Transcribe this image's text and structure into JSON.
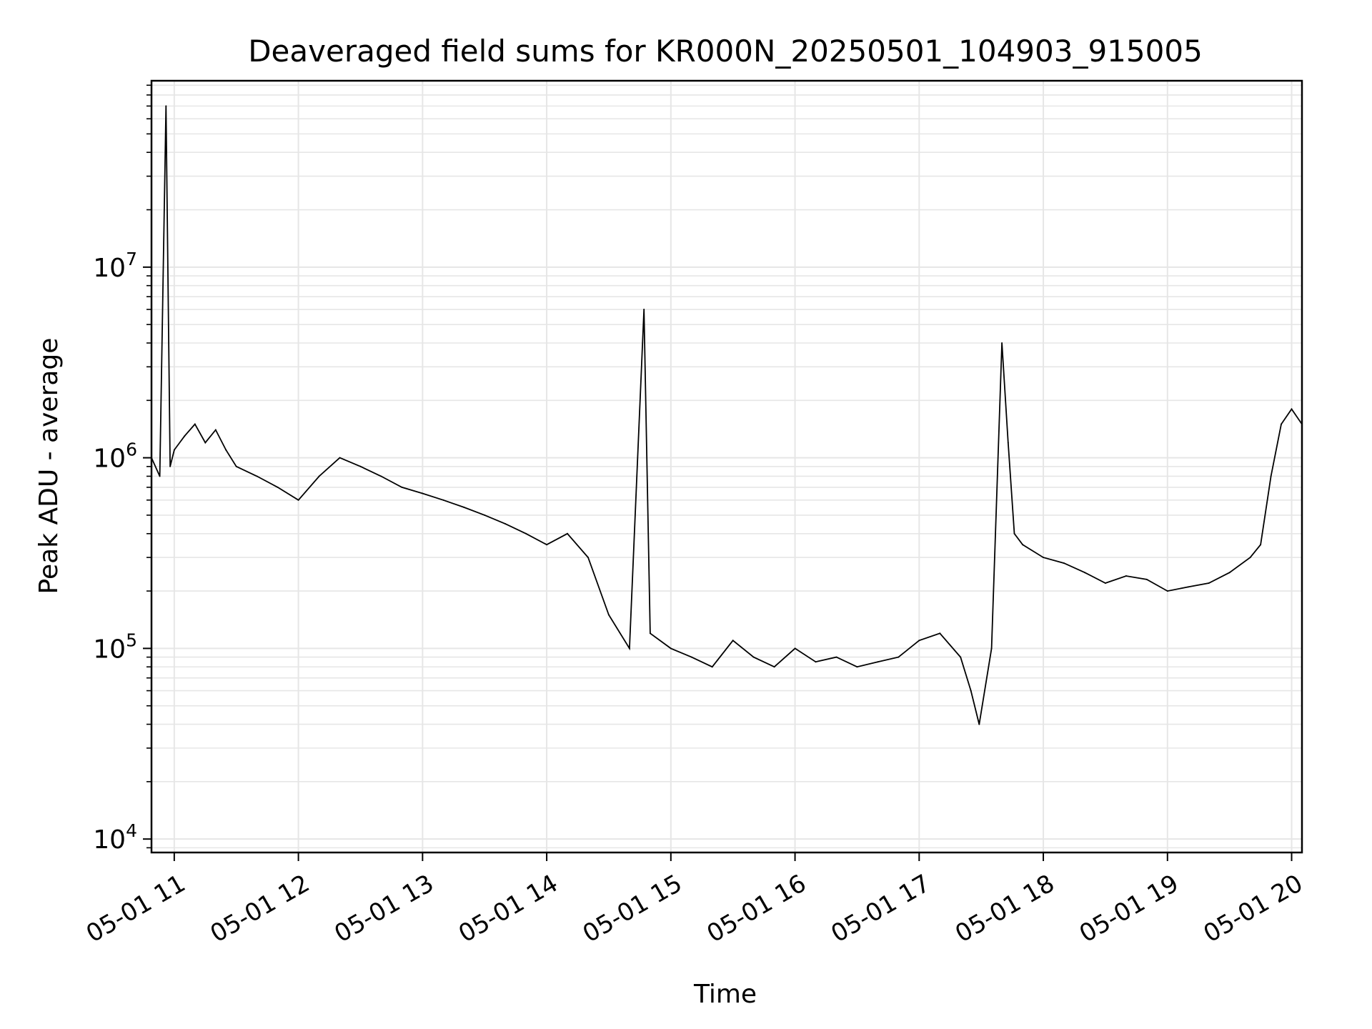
{
  "chart_data": {
    "type": "line",
    "title": "Deaveraged field sums for KR000N_20250501_104903_915005",
    "xlabel": "Time",
    "ylabel": "Peak ADU - average",
    "yscale": "log",
    "ylim": [
      8500,
      95000000
    ],
    "xlim": [
      "2025-05-01T10:49:00",
      "2025-05-01T20:05:00"
    ],
    "x_ticks": [
      {
        "t": "2025-05-01T11:00:00",
        "label": "05-01 11"
      },
      {
        "t": "2025-05-01T12:00:00",
        "label": "05-01 12"
      },
      {
        "t": "2025-05-01T13:00:00",
        "label": "05-01 13"
      },
      {
        "t": "2025-05-01T14:00:00",
        "label": "05-01 14"
      },
      {
        "t": "2025-05-01T15:00:00",
        "label": "05-01 15"
      },
      {
        "t": "2025-05-01T16:00:00",
        "label": "05-01 16"
      },
      {
        "t": "2025-05-01T17:00:00",
        "label": "05-01 17"
      },
      {
        "t": "2025-05-01T18:00:00",
        "label": "05-01 18"
      },
      {
        "t": "2025-05-01T19:00:00",
        "label": "05-01 19"
      },
      {
        "t": "2025-05-01T20:00:00",
        "label": "05-01 20"
      }
    ],
    "y_ticks": [
      {
        "value": 10000,
        "base": "10",
        "exp": "4"
      },
      {
        "value": 100000,
        "base": "10",
        "exp": "5"
      },
      {
        "value": 1000000,
        "base": "10",
        "exp": "6"
      },
      {
        "value": 10000000,
        "base": "10",
        "exp": "7"
      }
    ],
    "grid": true,
    "line_color": "#000000",
    "grid_color": "#e6e6e6",
    "series": [
      {
        "x": [
          "2025-05-01T10:49",
          "2025-05-01T10:53",
          "2025-05-01T10:56",
          "2025-05-01T10:58",
          "2025-05-01T11:00",
          "2025-05-01T11:05",
          "2025-05-01T11:10",
          "2025-05-01T11:15",
          "2025-05-01T11:20",
          "2025-05-01T11:25",
          "2025-05-01T11:30",
          "2025-05-01T11:40",
          "2025-05-01T11:50",
          "2025-05-01T12:00",
          "2025-05-01T12:10",
          "2025-05-01T12:20",
          "2025-05-01T12:30",
          "2025-05-01T12:40",
          "2025-05-01T12:50",
          "2025-05-01T13:00",
          "2025-05-01T13:10",
          "2025-05-01T13:20",
          "2025-05-01T13:30",
          "2025-05-01T13:40",
          "2025-05-01T13:50",
          "2025-05-01T14:00",
          "2025-05-01T14:10",
          "2025-05-01T14:20",
          "2025-05-01T14:30",
          "2025-05-01T14:40",
          "2025-05-01T14:47",
          "2025-05-01T14:50",
          "2025-05-01T15:00",
          "2025-05-01T15:10",
          "2025-05-01T15:20",
          "2025-05-01T15:30",
          "2025-05-01T15:40",
          "2025-05-01T15:50",
          "2025-05-01T16:00",
          "2025-05-01T16:10",
          "2025-05-01T16:20",
          "2025-05-01T16:30",
          "2025-05-01T16:40",
          "2025-05-01T16:50",
          "2025-05-01T17:00",
          "2025-05-01T17:10",
          "2025-05-01T17:20",
          "2025-05-01T17:25",
          "2025-05-01T17:29",
          "2025-05-01T17:35",
          "2025-05-01T17:40",
          "2025-05-01T17:43",
          "2025-05-01T17:46",
          "2025-05-01T17:50",
          "2025-05-01T18:00",
          "2025-05-01T18:10",
          "2025-05-01T18:20",
          "2025-05-01T18:30",
          "2025-05-01T18:40",
          "2025-05-01T18:50",
          "2025-05-01T19:00",
          "2025-05-01T19:10",
          "2025-05-01T19:20",
          "2025-05-01T19:30",
          "2025-05-01T19:40",
          "2025-05-01T19:45",
          "2025-05-01T19:50",
          "2025-05-01T19:55",
          "2025-05-01T20:00",
          "2025-05-01T20:05"
        ],
        "y": [
          1000000,
          800000,
          70000000,
          900000,
          1100000,
          1300000,
          1500000,
          1200000,
          1400000,
          1100000,
          900000,
          800000,
          700000,
          600000,
          800000,
          1000000,
          900000,
          800000,
          700000,
          650000,
          600000,
          550000,
          500000,
          450000,
          400000,
          350000,
          400000,
          300000,
          150000,
          100000,
          6000000,
          120000,
          100000,
          90000,
          80000,
          110000,
          90000,
          80000,
          100000,
          85000,
          90000,
          80000,
          85000,
          90000,
          110000,
          120000,
          90000,
          60000,
          40000,
          100000,
          4000000,
          1200000,
          400000,
          350000,
          300000,
          280000,
          250000,
          220000,
          240000,
          230000,
          200000,
          210000,
          220000,
          250000,
          300000,
          350000,
          800000,
          1500000,
          1800000,
          1500000
        ]
      }
    ]
  }
}
